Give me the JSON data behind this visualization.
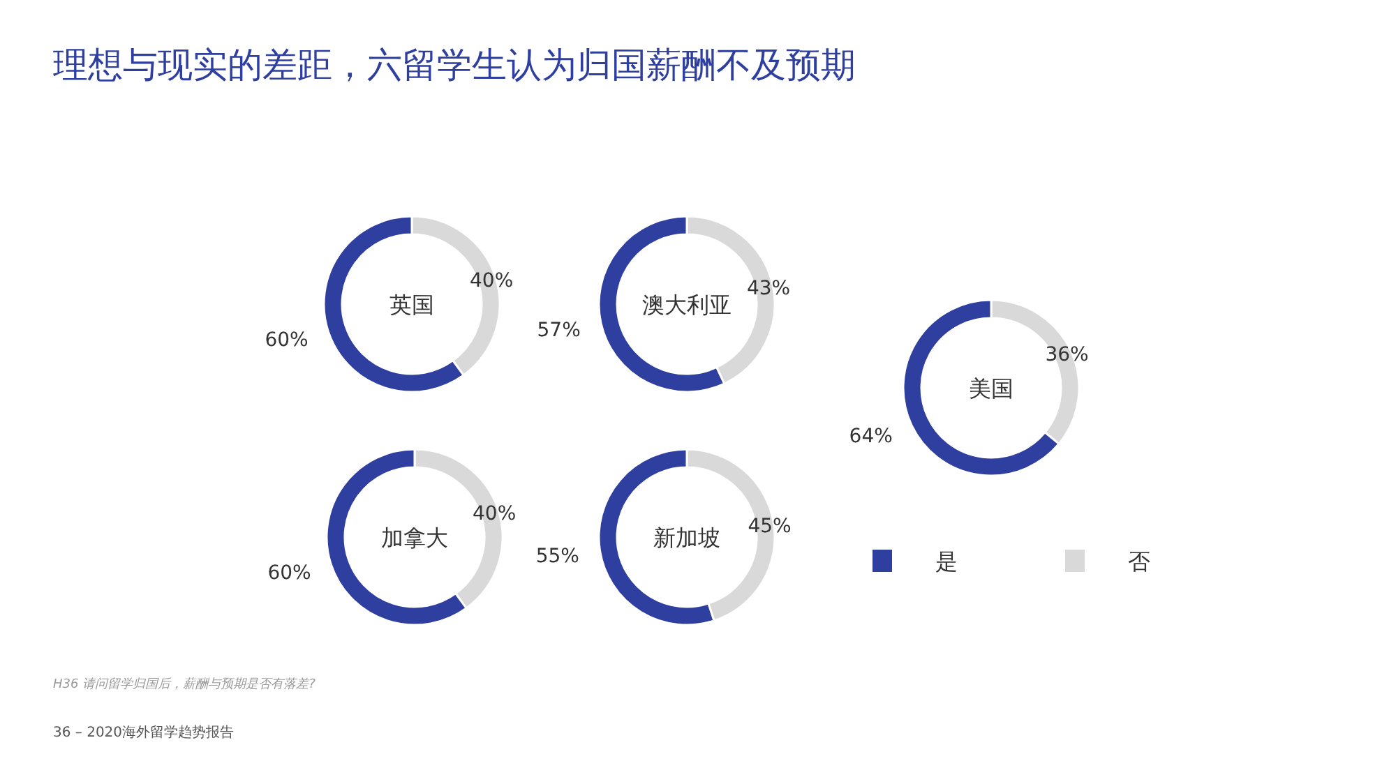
{
  "chart_data": [
    {
      "type": "other",
      "title": "理想与现实的差距，六留学生认为归国薪酬不及预期",
      "annotations": [
        "H36 请问留学归国后，薪酬与预期是否有落差?",
        "36 – 2020海外留学趋势报告"
      ]
    },
    {
      "type": "donut",
      "title": "英国",
      "categories": [
        null,
        null
      ],
      "values": [
        60,
        40
      ],
      "value_labels": [
        "60%",
        "40%"
      ],
      "colors": [
        "#2e3fa0",
        "#d9d9d9"
      ]
    },
    {
      "type": "donut",
      "title": "澳大利亚",
      "categories": [
        null,
        null
      ],
      "values": [
        57,
        43
      ],
      "value_labels": [
        "57%",
        "43%"
      ],
      "colors": [
        "#2e3fa0",
        "#d9d9d9"
      ]
    },
    {
      "type": "donut",
      "title": "美国",
      "categories": [
        "是",
        "否"
      ],
      "values": [
        64,
        36
      ],
      "value_labels": [
        "64%",
        "36%"
      ],
      "colors": [
        "#2e3fa0",
        "#d9d9d9"
      ],
      "legend": "bottom"
    },
    {
      "type": "donut",
      "title": "加拿大",
      "categories": [
        null,
        null
      ],
      "values": [
        60,
        40
      ],
      "value_labels": [
        "60%",
        "40%"
      ],
      "colors": [
        "#2e3fa0",
        "#d9d9d9"
      ]
    },
    {
      "type": "donut",
      "title": "新加坡",
      "categories": [
        null,
        null
      ],
      "values": [
        55,
        45
      ],
      "value_labels": [
        "55%",
        "45%"
      ],
      "colors": [
        "#2e3fa0",
        "#d9d9d9"
      ]
    }
  ]
}
